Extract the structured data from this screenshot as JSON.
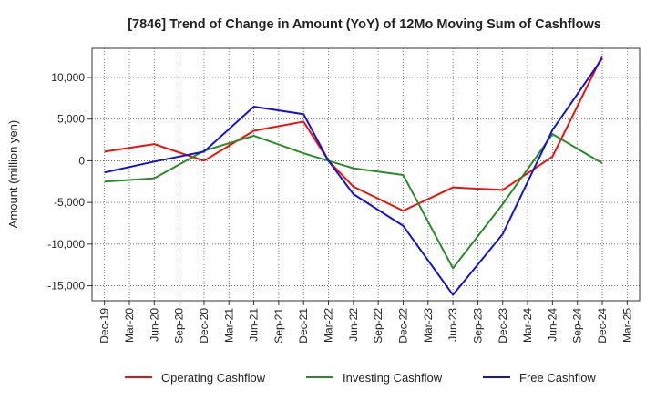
{
  "chart_data": {
    "type": "line",
    "title": "[7846]  Trend of Change in Amount (YoY) of 12Mo Moving Sum of Cashflows",
    "xlabel": "",
    "ylabel": "Amount (million yen)",
    "x_ticks": [
      "Dec-19",
      "Mar-20",
      "Jun-20",
      "Sep-20",
      "Dec-20",
      "Mar-21",
      "Jun-21",
      "Sep-21",
      "Dec-21",
      "Mar-22",
      "Jun-22",
      "Sep-22",
      "Dec-22",
      "Mar-23",
      "Jun-23",
      "Sep-23",
      "Dec-23",
      "Mar-24",
      "Jun-24",
      "Sep-24",
      "Dec-24",
      "Mar-25"
    ],
    "y_ticks": [
      -15000,
      -10000,
      -5000,
      0,
      5000,
      10000
    ],
    "y_tick_labels": [
      "-15,000",
      "-10,000",
      "-5,000",
      "0",
      "5,000",
      "10,000"
    ],
    "ylim": [
      -16800,
      13500
    ],
    "grid": true,
    "legend_position": "bottom",
    "series": [
      {
        "name": "Operating Cashflow",
        "color": "#e8120c",
        "x": [
          "Dec-19",
          "Jun-20",
          "Dec-20",
          "Jun-21",
          "Dec-21",
          "Mar-22",
          "Jun-22",
          "Dec-22",
          "Jun-23",
          "Dec-23",
          "Jun-24",
          "Dec-24"
        ],
        "values": [
          1100,
          2000,
          0,
          3600,
          4700,
          0,
          -3100,
          -6000,
          -3200,
          -3500,
          500,
          12600
        ]
      },
      {
        "name": "Investing Cashflow",
        "color": "#2a8a2a",
        "x": [
          "Dec-19",
          "Jun-20",
          "Dec-20",
          "Jun-21",
          "Dec-21",
          "Mar-22",
          "Jun-22",
          "Dec-22",
          "Jun-23",
          "Dec-23",
          "Jun-24",
          "Dec-24"
        ],
        "values": [
          -2500,
          -2100,
          1200,
          3000,
          900,
          0,
          -900,
          -1700,
          -12900,
          -5200,
          3200,
          -300
        ]
      },
      {
        "name": "Free Cashflow",
        "color": "#1414cc",
        "x": [
          "Dec-19",
          "Jun-20",
          "Dec-20",
          "Jun-21",
          "Dec-21",
          "Mar-22",
          "Jun-22",
          "Dec-22",
          "Jun-23",
          "Dec-23",
          "Jun-24",
          "Dec-24"
        ],
        "values": [
          -1400,
          -100,
          1100,
          6500,
          5600,
          0,
          -4000,
          -7800,
          -16100,
          -8800,
          3700,
          12300
        ]
      }
    ]
  }
}
